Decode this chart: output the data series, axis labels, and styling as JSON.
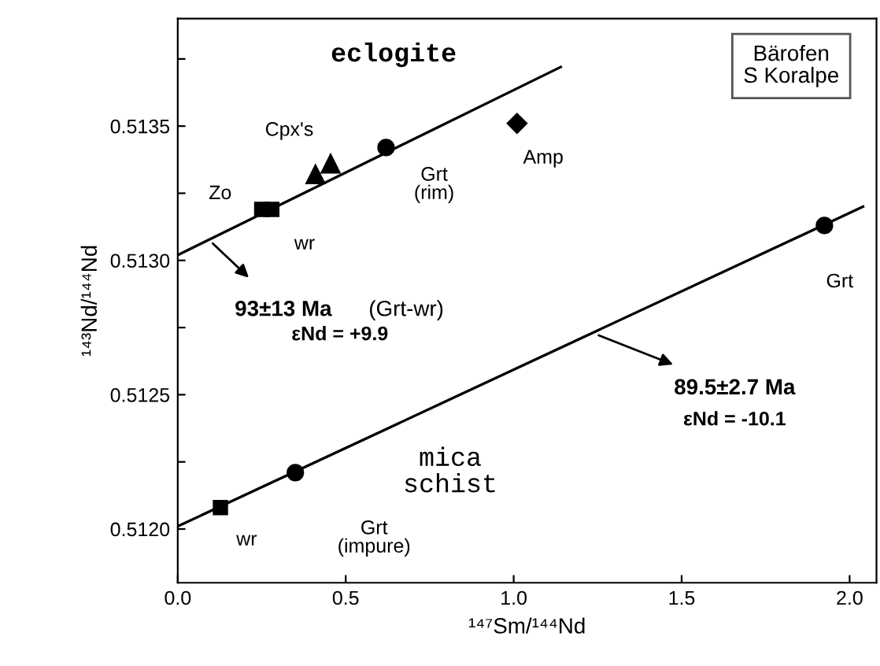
{
  "chart_data": {
    "type": "scatter",
    "xlabel": "¹⁴⁷Sm/¹⁴⁴Nd",
    "ylabel": "¹⁴³Nd/¹⁴⁴Nd",
    "xlim": [
      0,
      2.08
    ],
    "ylim": [
      0.5118,
      0.5139
    ],
    "xticks": [
      {
        "value": 0,
        "label": "0.0"
      },
      {
        "value": 0.5,
        "label": "0.5"
      },
      {
        "value": 1,
        "label": "1.0"
      },
      {
        "value": 1.5,
        "label": "1.5"
      },
      {
        "value": 2,
        "label": "2.0"
      }
    ],
    "yticks": [
      {
        "value": 0.512,
        "label": "0.5120"
      },
      {
        "value": 0.51225,
        "label": null
      },
      {
        "value": 0.5125,
        "label": "0.5125"
      },
      {
        "value": 0.51275,
        "label": null
      },
      {
        "value": 0.513,
        "label": "0.5130"
      },
      {
        "value": 0.51325,
        "label": null
      },
      {
        "value": 0.5135,
        "label": "0.5135"
      },
      {
        "value": 0.51375,
        "label": null
      }
    ],
    "grid": false,
    "legend": false,
    "series": [
      {
        "type": "line",
        "color": "#000000",
        "x": [
          0,
          1.14
        ],
        "values": [
          0.51302,
          0.51372
        ]
      },
      {
        "type": "line",
        "color": "#000000",
        "x": [
          0,
          2.04
        ],
        "values": [
          0.51201,
          0.5132
        ]
      },
      {
        "name": "Zo",
        "marker": "square",
        "color": "#000000",
        "x": [
          0.25
        ],
        "values": [
          0.51319
        ]
      },
      {
        "name": "wr",
        "marker": "square",
        "color": "#000000",
        "x": [
          0.28
        ],
        "values": [
          0.51319
        ]
      },
      {
        "name": "Cpx's",
        "marker": "triangle",
        "color": "#000000",
        "x": [
          0.41,
          0.455
        ],
        "values": [
          0.51332,
          0.51336
        ]
      },
      {
        "name": "Grt\n(rim)",
        "marker": "circle",
        "color": "#000000",
        "x": [
          0.62
        ],
        "values": [
          0.51342
        ]
      },
      {
        "name": "Amp",
        "marker": "diamond",
        "color": "#000000",
        "x": [
          1.01
        ],
        "values": [
          0.51351
        ]
      },
      {
        "name": "wr",
        "marker": "square",
        "color": "#000000",
        "x": [
          0.127
        ],
        "values": [
          0.51208
        ]
      },
      {
        "name": "Grt\n(impure)",
        "marker": "circle",
        "color": "#000000",
        "x": [
          0.35
        ],
        "values": [
          0.51221
        ]
      },
      {
        "name": "Grt",
        "marker": "circle",
        "color": "#000000",
        "x": [
          1.925
        ],
        "values": [
          0.51313
        ]
      }
    ],
    "annotations": [
      "eclogite",
      "Bärofen\nS Koralpe",
      "mica\nschist",
      {
        "text": "93±13 Ma",
        "x": 0.09,
        "y": 0.51308
      },
      "(Grt-wr)",
      "εNd = +9.9",
      {
        "text": "89.5±2.7 Ma",
        "x": 1.235,
        "y": 0.51273
      },
      "εNd = -10.1"
    ]
  }
}
